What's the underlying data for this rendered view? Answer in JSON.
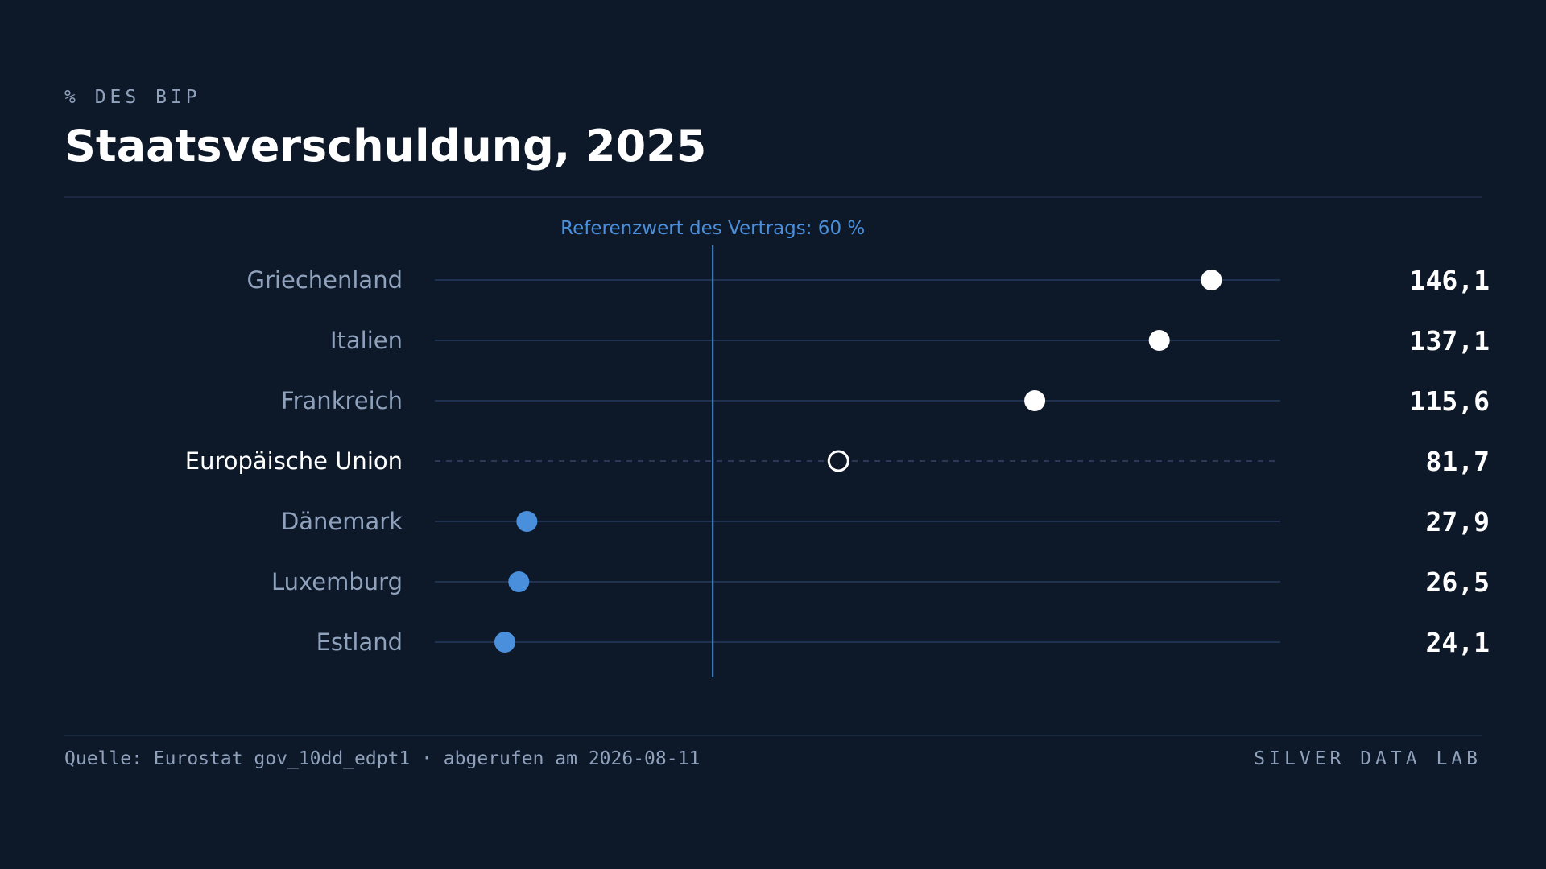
{
  "header": {
    "eyebrow": "% DES BIP",
    "title": "Staatsverschuldung, 2025"
  },
  "footer": {
    "source": "Quelle: Eurostat gov_10dd_edpt1 · abgerufen am 2026-08-11",
    "brand": "SILVER DATA LAB"
  },
  "colors": {
    "background": "#0d1829",
    "high_point": "#ffffff",
    "low_point": "#4a8fdb",
    "reference_line": "#4a8fdb",
    "track": "#1f3350",
    "label": "#8fa1bb",
    "label_highlight": "#ffffff",
    "value": "#ffffff"
  },
  "chart_data": {
    "type": "scatter",
    "variant": "dot-plot",
    "title": "Staatsverschuldung, 2025",
    "unit_label": "% DES BIP",
    "categories": [
      "Griechenland",
      "Italien",
      "Frankreich",
      "Europäische Union",
      "Dänemark",
      "Luxemburg",
      "Estland"
    ],
    "values": [
      146.1,
      137.1,
      115.6,
      81.7,
      27.9,
      26.5,
      24.1
    ],
    "value_labels": [
      "146,1",
      "137,1",
      "115,6",
      "81,7",
      "27,9",
      "26,5",
      "24,1"
    ],
    "highlight": "Europäische Union",
    "reference": {
      "value": 60,
      "label": "Referenzwert des Vertrags: 60 %"
    },
    "xlim": [
      12,
      158
    ],
    "grid": false,
    "legend": "none"
  }
}
